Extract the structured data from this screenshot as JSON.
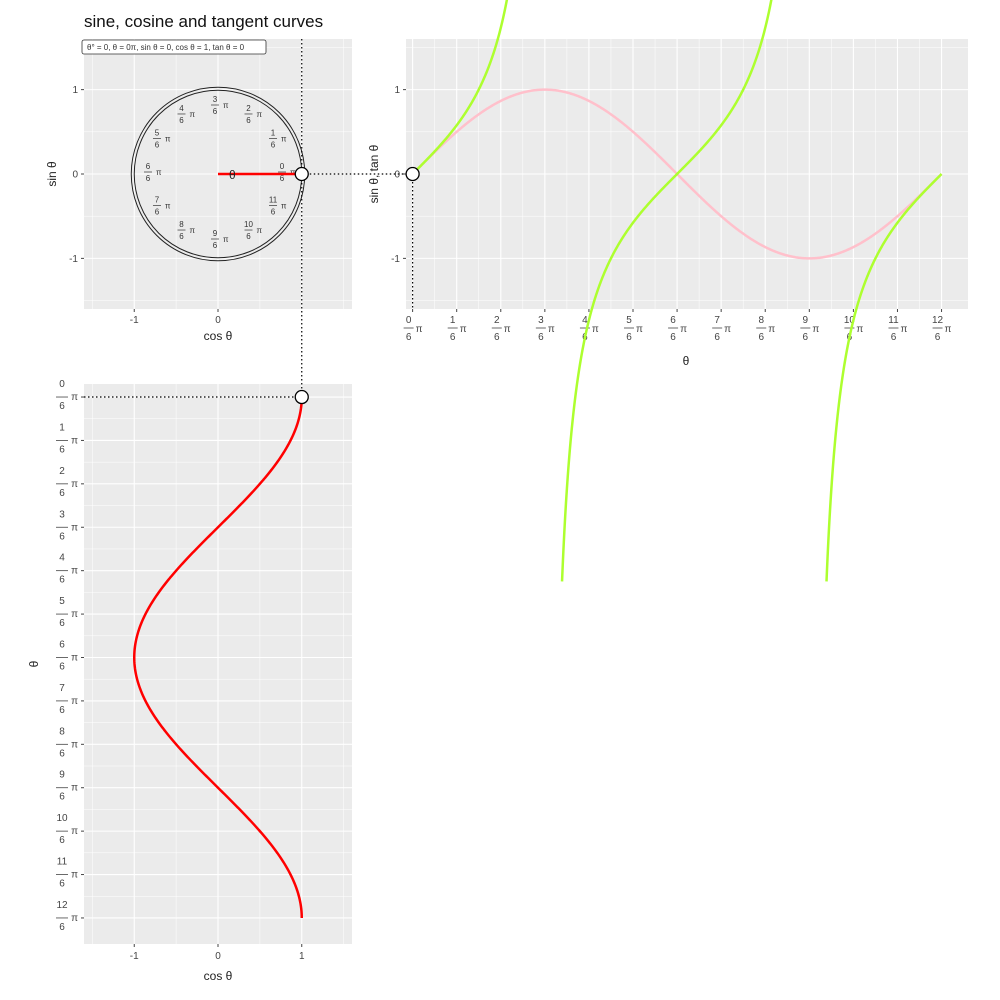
{
  "title": "sine, cosine and tangent curves",
  "status_label": "θ° = 0, θ = 0π, sin θ = 0, cos θ = 1, tan θ = 0",
  "circle_theta_symbol": "θ",
  "circle_labels": [
    "0",
    "1",
    "2",
    "3",
    "4",
    "5",
    "6",
    "7",
    "8",
    "9",
    "10",
    "11"
  ],
  "pi_symbol": "π",
  "frac_denominator": "6",
  "colors": {
    "panel_bg": "#ebebeb",
    "grid": "#ffffff",
    "cosine": "#ff0000",
    "sine": "#ffc0cb",
    "tangent": "#adff2f",
    "radius": "#ff0000"
  },
  "chart_data": [
    {
      "type": "line",
      "panel": "unit-circle",
      "xlabel": "cos θ",
      "ylabel": "sin θ",
      "xlim": [
        -1.6,
        1.6
      ],
      "ylim": [
        -1.6,
        1.6
      ],
      "x_ticks": [
        -1,
        0
      ],
      "x_tick_labels": [
        "-1",
        "0"
      ],
      "y_ticks": [
        -1,
        0,
        1
      ],
      "y_tick_labels": [
        "-1",
        "0",
        "1"
      ],
      "circle_radius": 1,
      "current_point": {
        "x": 1,
        "y": 0
      },
      "grid": true
    },
    {
      "type": "line",
      "panel": "sine-tangent",
      "xlabel": "θ",
      "ylabel": "sin θ, tan θ",
      "xlim": [
        -0.15,
        12.6
      ],
      "ylim": [
        -1.6,
        1.6
      ],
      "x_ticks_numerators": [
        0,
        1,
        2,
        3,
        4,
        5,
        6,
        7,
        8,
        9,
        10,
        11,
        12
      ],
      "y_ticks": [
        -1,
        0,
        1
      ],
      "y_tick_labels": [
        "-1",
        "0",
        "1"
      ],
      "series": [
        {
          "function": "sin",
          "color": "#ffc0cb",
          "domain_over_pi6": [
            0,
            12
          ]
        },
        {
          "function": "tan",
          "color": "#adff2f",
          "domain_over_pi6": [
            0,
            12
          ]
        }
      ],
      "current_point": {
        "x": 0,
        "y": 0
      },
      "grid": true
    },
    {
      "type": "line",
      "panel": "cosine",
      "xlabel": "cos θ",
      "ylabel": "θ",
      "xlim": [
        -1.6,
        1.6
      ],
      "ylim": [
        -0.3,
        12.6
      ],
      "x_ticks": [
        -1,
        0,
        1
      ],
      "x_tick_labels": [
        "-1",
        "0",
        "1"
      ],
      "y_ticks_numerators": [
        0,
        1,
        2,
        3,
        4,
        5,
        6,
        7,
        8,
        9,
        10,
        11,
        12
      ],
      "series": [
        {
          "function": "cos",
          "color": "#ff0000",
          "domain_over_pi6": [
            0,
            12
          ]
        }
      ],
      "current_point": {
        "x": 1,
        "y": 0
      },
      "grid": true
    }
  ]
}
